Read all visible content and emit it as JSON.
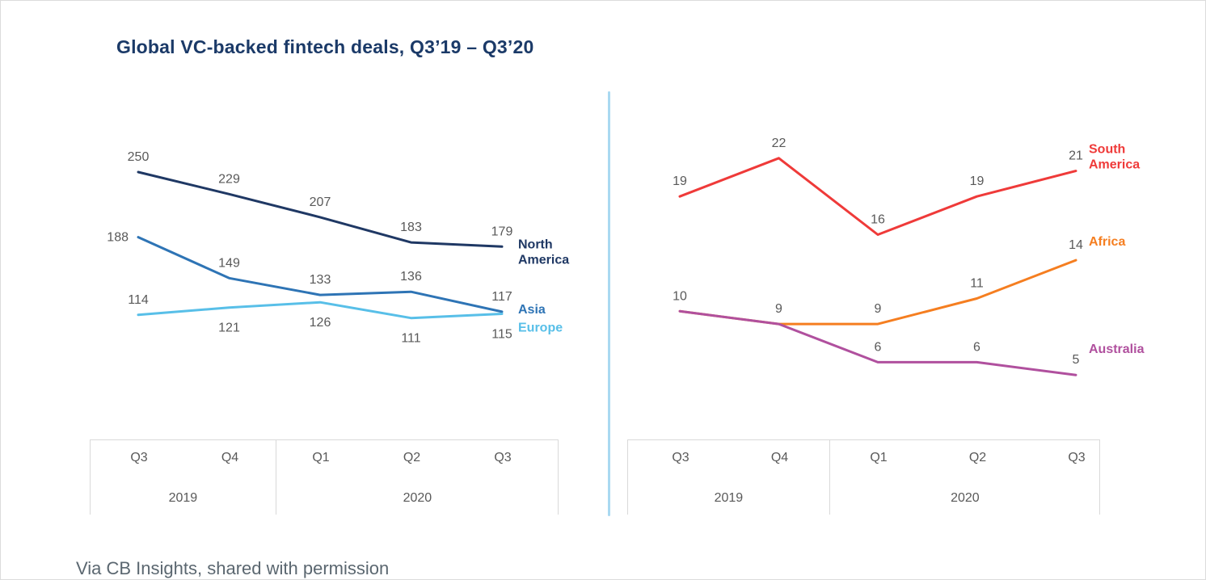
{
  "page": {
    "title": "Global VC-backed fintech deals, Q3’19 – Q3’20",
    "footer_note": "Via CB Insights, shared with permission"
  },
  "colors": {
    "title": "#1b3a68",
    "value_label": "#595959",
    "axis_text": "#595959",
    "axis_border": "#d9d9d9",
    "panel_divider": "#a9d9f1",
    "footer_text": "#5b6770"
  },
  "chart_data": [
    {
      "type": "line",
      "title": "Global VC-backed fintech deals, Q3’19 – Q3’20 (left panel)",
      "categories": [
        "Q3",
        "Q4",
        "Q1",
        "Q2",
        "Q3"
      ],
      "year_groups": [
        {
          "label": "2019",
          "span": 2
        },
        {
          "label": "2020",
          "span": 3
        }
      ],
      "ylim": [
        100,
        260
      ],
      "grid": false,
      "legend_position": "right-of-line-end",
      "series": [
        {
          "name": "North America",
          "color": "#1f3864",
          "values": [
            250,
            229,
            207,
            183,
            179
          ],
          "label_pos": [
            "a",
            "a",
            "a",
            "a",
            "a"
          ],
          "wrap": true,
          "name_dy": 6
        },
        {
          "name": "Asia",
          "color": "#2e74b5",
          "values": [
            188,
            149,
            133,
            136,
            117
          ],
          "label_pos": [
            "l",
            "a",
            "a",
            "a",
            "a"
          ],
          "wrap": false,
          "name_dy": -4
        },
        {
          "name": "Europe",
          "color": "#58bfe8",
          "values": [
            114,
            121,
            126,
            111,
            115
          ],
          "label_pos": [
            "a",
            "b",
            "b",
            "b",
            "b"
          ],
          "wrap": false,
          "name_dy": 16
        }
      ]
    },
    {
      "type": "line",
      "title": "Global VC-backed fintech deals, Q3’19 – Q3’20 (right panel)",
      "categories": [
        "Q3",
        "Q4",
        "Q1",
        "Q2",
        "Q3"
      ],
      "year_groups": [
        {
          "label": "2019",
          "span": 2
        },
        {
          "label": "2020",
          "span": 3
        }
      ],
      "ylim": [
        4,
        23
      ],
      "grid": false,
      "legend_position": "right-of-line-end",
      "series": [
        {
          "name": "South America",
          "color": "#ef3a39",
          "values": [
            19,
            22,
            16,
            19,
            21
          ],
          "label_pos": [
            "a",
            "a",
            "a",
            "a",
            "a"
          ],
          "wrap": true,
          "name_dy": -18
        },
        {
          "name": "Africa",
          "color": "#f57e20",
          "values": [
            10,
            9,
            9,
            11,
            14
          ],
          "label_pos": [
            "a",
            "a",
            "a",
            "a",
            "a"
          ],
          "wrap": false,
          "name_dy": -24
        },
        {
          "name": "Australia",
          "color": "#b0509e",
          "values": [
            10,
            9,
            6,
            6,
            5
          ],
          "label_show": [
            false,
            false,
            true,
            true,
            true
          ],
          "label_pos": [
            "a",
            "a",
            "a",
            "a",
            "a"
          ],
          "wrap": false,
          "name_dy": -33
        }
      ]
    }
  ]
}
